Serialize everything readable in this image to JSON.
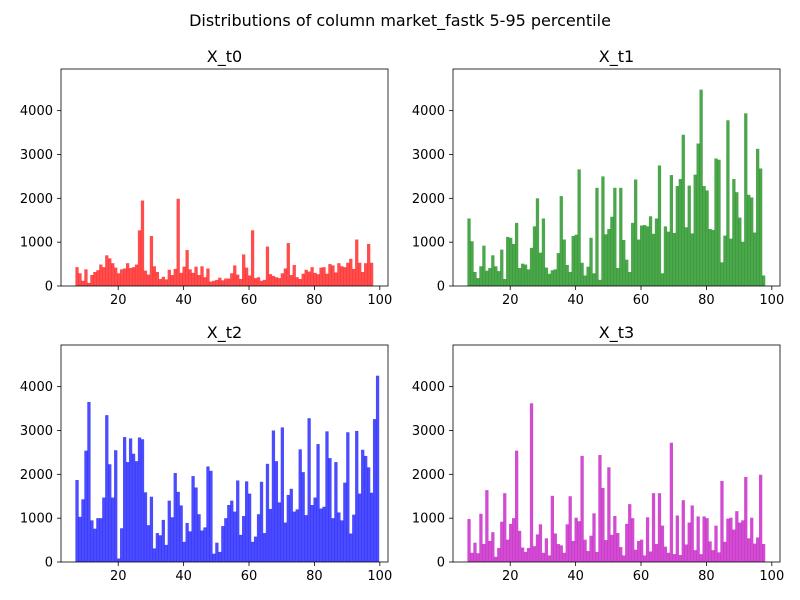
{
  "suptitle": "Distributions of column market_fastk 5-95 percentile",
  "chart_data": [
    {
      "type": "bar",
      "title": "X_t0",
      "color": "#ff0000",
      "xlabel": "",
      "ylabel": "",
      "xlim": [
        2.5,
        102.5
      ],
      "ylim": [
        0,
        4950
      ],
      "xticks": [
        20,
        40,
        60,
        80,
        100
      ],
      "yticks": [
        0,
        1000,
        2000,
        3000,
        4000
      ],
      "bin_start": 6.9,
      "bin_width": 0.91,
      "values": [
        430,
        290,
        120,
        380,
        70,
        250,
        320,
        360,
        490,
        430,
        700,
        630,
        520,
        420,
        290,
        380,
        400,
        520,
        410,
        430,
        490,
        1270,
        1950,
        350,
        260,
        1140,
        450,
        320,
        160,
        210,
        150,
        370,
        250,
        390,
        1990,
        300,
        440,
        820,
        380,
        300,
        440,
        250,
        450,
        200,
        400,
        100,
        120,
        140,
        190,
        130,
        170,
        170,
        290,
        470,
        260,
        160,
        720,
        420,
        240,
        1270,
        180,
        200,
        120,
        140,
        900,
        270,
        230,
        200,
        180,
        290,
        400,
        980,
        250,
        480,
        200,
        160,
        280,
        370,
        330,
        430,
        300,
        270,
        420,
        430,
        280,
        500,
        470,
        310,
        520,
        450,
        430,
        530,
        620,
        390,
        1060,
        530,
        320,
        520,
        960,
        530
      ]
    },
    {
      "type": "bar",
      "title": "X_t1",
      "color": "#008000",
      "xlabel": "",
      "ylabel": "",
      "xlim": [
        2.5,
        102.5
      ],
      "ylim": [
        0,
        4950
      ],
      "xticks": [
        20,
        40,
        60,
        80,
        100
      ],
      "yticks": [
        0,
        1000,
        2000,
        3000,
        4000
      ],
      "bin_start": 6.9,
      "bin_width": 0.91,
      "values": [
        1540,
        1020,
        320,
        180,
        450,
        920,
        350,
        410,
        700,
        450,
        340,
        830,
        160,
        1120,
        1100,
        960,
        1440,
        410,
        510,
        490,
        380,
        870,
        1360,
        2000,
        760,
        1540,
        420,
        280,
        360,
        380,
        750,
        2050,
        1060,
        480,
        320,
        1140,
        1170,
        2660,
        530,
        240,
        440,
        1100,
        290,
        2240,
        140,
        2500,
        1180,
        1300,
        1580,
        2240,
        410,
        2240,
        1050,
        600,
        320,
        1440,
        2430,
        1060,
        1380,
        1390,
        1360,
        1590,
        1190,
        1540,
        2750,
        290,
        1360,
        1240,
        2530,
        1210,
        2280,
        2440,
        3450,
        1340,
        2290,
        1200,
        2540,
        3250,
        4480,
        2280,
        2180,
        1300,
        1280,
        2910,
        2880,
        540,
        1150,
        3780,
        1080,
        2440,
        2140,
        1560,
        1010,
        3940,
        2080,
        2020,
        1220,
        3130,
        2680,
        240
      ]
    },
    {
      "type": "bar",
      "title": "X_t2",
      "color": "#0000ff",
      "xlabel": "",
      "ylabel": "",
      "xlim": [
        2.5,
        102.5
      ],
      "ylim": [
        0,
        4950
      ],
      "xticks": [
        20,
        40,
        60,
        80,
        100
      ],
      "yticks": [
        0,
        1000,
        2000,
        3000,
        4000
      ],
      "bin_start": 6.9,
      "bin_width": 0.91,
      "values": [
        1870,
        1030,
        1430,
        2540,
        3650,
        950,
        760,
        1000,
        1000,
        1470,
        3350,
        2230,
        1470,
        2550,
        80,
        770,
        2850,
        2280,
        2820,
        2470,
        2300,
        2840,
        2800,
        1590,
        840,
        1490,
        310,
        660,
        610,
        960,
        390,
        1400,
        1020,
        2030,
        1600,
        1290,
        460,
        890,
        700,
        1960,
        1700,
        1090,
        720,
        790,
        2180,
        2080,
        190,
        440,
        230,
        820,
        1000,
        1300,
        1400,
        1150,
        1860,
        620,
        1050,
        1840,
        1560,
        460,
        580,
        1090,
        1830,
        660,
        2240,
        1210,
        3000,
        2300,
        1360,
        3070,
        900,
        1530,
        1670,
        1150,
        1200,
        2570,
        2050,
        1070,
        3280,
        1300,
        1470,
        2690,
        1220,
        1260,
        2980,
        2370,
        1000,
        2280,
        1130,
        950,
        1810,
        2960,
        650,
        1080,
        2990,
        1560,
        2560,
        2420,
        2160,
        1580,
        3260,
        4250
      ]
    },
    {
      "type": "bar",
      "title": "X_t3",
      "color": "#bf00bf",
      "xlabel": "",
      "ylabel": "",
      "xlim": [
        2.5,
        102.5
      ],
      "ylim": [
        0,
        4950
      ],
      "xticks": [
        20,
        40,
        60,
        80,
        100
      ],
      "yticks": [
        0,
        1000,
        2000,
        3000,
        4000
      ],
      "bin_start": 6.9,
      "bin_width": 0.91,
      "values": [
        980,
        210,
        440,
        200,
        1100,
        410,
        1640,
        480,
        680,
        120,
        320,
        920,
        1570,
        510,
        870,
        1000,
        2540,
        710,
        330,
        230,
        320,
        3620,
        360,
        630,
        860,
        210,
        540,
        150,
        1510,
        650,
        410,
        380,
        210,
        860,
        1500,
        480,
        1010,
        930,
        2420,
        510,
        250,
        600,
        1110,
        230,
        2440,
        1690,
        500,
        2160,
        620,
        1050,
        660,
        340,
        150,
        870,
        1320,
        1000,
        280,
        480,
        510,
        150,
        1020,
        240,
        1570,
        410,
        1570,
        830,
        350,
        210,
        2720,
        180,
        1060,
        160,
        1410,
        400,
        900,
        1290,
        270,
        1040,
        180,
        1040,
        1000,
        470,
        270,
        830,
        220,
        1850,
        460,
        990,
        1010,
        740,
        1160,
        900,
        950,
        1940,
        540,
        1010,
        420,
        560,
        1990,
        410
      ]
    }
  ]
}
